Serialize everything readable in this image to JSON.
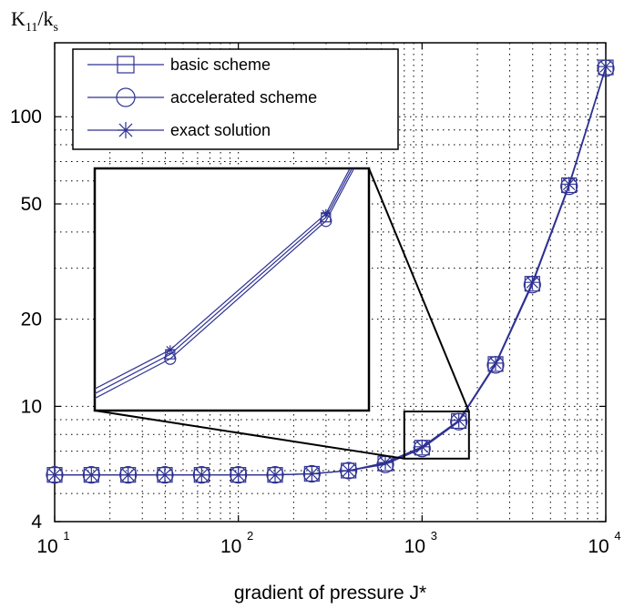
{
  "chart_data": {
    "type": "line",
    "x_scale": "log",
    "y_scale": "log",
    "xlim": [
      10,
      10000
    ],
    "ylim": [
      4,
      180
    ],
    "grid": true,
    "legend_position": "top-left",
    "xlabel": "gradient of pressure J*",
    "ylabel": {
      "main": "K",
      "sub1": "11",
      "slash": "/k",
      "sub2": "s"
    },
    "x_ticks": [
      {
        "base": "10",
        "exp": "1",
        "value": 10
      },
      {
        "base": "10",
        "exp": "2",
        "value": 100
      },
      {
        "base": "10",
        "exp": "3",
        "value": 1000
      },
      {
        "base": "10",
        "exp": "4",
        "value": 10000
      }
    ],
    "y_ticks": [
      {
        "label": "4",
        "value": 4
      },
      {
        "label": "10",
        "value": 10
      },
      {
        "label": "20",
        "value": 20
      },
      {
        "label": "50",
        "value": 50
      },
      {
        "label": "100",
        "value": 100
      }
    ],
    "x": [
      10,
      15.85,
      25.12,
      39.81,
      63.1,
      100,
      158.5,
      251.2,
      398.1,
      631,
      1000,
      1585,
      2512,
      3981,
      6310,
      10000
    ],
    "series": [
      {
        "name": "basic scheme",
        "marker": "square",
        "values": [
          5.8,
          5.8,
          5.8,
          5.8,
          5.8,
          5.8,
          5.8,
          5.85,
          6.0,
          6.35,
          7.2,
          8.9,
          14.0,
          26.5,
          58.0,
          148.0
        ]
      },
      {
        "name": "accelerated scheme",
        "marker": "circle",
        "values": [
          5.8,
          5.8,
          5.8,
          5.8,
          5.8,
          5.8,
          5.8,
          5.85,
          6.0,
          6.3,
          7.15,
          8.85,
          13.9,
          26.3,
          57.5,
          147.0
        ]
      },
      {
        "name": "exact solution",
        "marker": "asterisk",
        "values": [
          5.8,
          5.8,
          5.8,
          5.8,
          5.8,
          5.8,
          5.8,
          5.85,
          6.0,
          6.4,
          7.25,
          8.95,
          14.1,
          26.8,
          58.5,
          149.0
        ]
      }
    ],
    "inset": {
      "xlim": [
        800,
        1800
      ],
      "ylim": [
        6.6,
        9.6
      ]
    },
    "colors": {
      "series": "#2e3192"
    }
  }
}
